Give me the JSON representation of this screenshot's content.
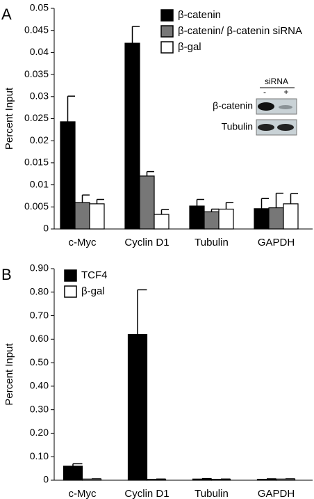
{
  "chart_data": [
    {
      "type": "bar",
      "panel": "A",
      "ylabel": "Percent Input",
      "categories": [
        "c-Myc",
        "Cyclin D1",
        "Tubulin",
        "GAPDH"
      ],
      "series": [
        {
          "name": "β-catenin",
          "color": "#000000",
          "values": [
            0.0243,
            0.0421,
            0.0052,
            0.0046
          ],
          "errors": [
            0.0058,
            0.0038,
            0.0015,
            0.0023
          ]
        },
        {
          "name": "β-catenin/ β-catenin siRNA",
          "color": "#777777",
          "values": [
            0.006,
            0.012,
            0.0039,
            0.0048
          ],
          "errors": [
            0.0017,
            0.001,
            0.0006,
            0.0033
          ]
        },
        {
          "name": "β-gal",
          "color": "#ffffff",
          "values": [
            0.0057,
            0.0033,
            0.0045,
            0.0057
          ],
          "errors": [
            0.001,
            0.0011,
            0.0015,
            0.0023
          ]
        }
      ],
      "ylim": [
        0,
        0.05
      ],
      "yticks": [
        0,
        0.005,
        0.01,
        0.015,
        0.02,
        0.025,
        0.03,
        0.035,
        0.04,
        0.045,
        0.05
      ],
      "legend": "upper center",
      "inset": {
        "title": "siRNA",
        "lanes": [
          "-",
          "+"
        ],
        "rows": [
          "β-catenin",
          "Tubulin"
        ]
      }
    },
    {
      "type": "bar",
      "panel": "B",
      "ylabel": "Percent Input",
      "categories": [
        "c-Myc",
        "Cyclin D1",
        "Tubulin",
        "GAPDH"
      ],
      "series": [
        {
          "name": "TCF4",
          "color": "#000000",
          "values": [
            0.06,
            0.62,
            0.005,
            0.004
          ],
          "errors": [
            0.01,
            0.19,
            0.002,
            0.002
          ]
        },
        {
          "name": "β-gal",
          "color": "#ffffff",
          "values": [
            0.005,
            0.004,
            0.004,
            0.005
          ],
          "errors": [
            0.001,
            0.001,
            0.001,
            0.001
          ]
        }
      ],
      "ylim": [
        0,
        0.9
      ],
      "yticks": [
        0,
        {
          "value": 0.1,
          "label": "0.10"
        },
        {
          "value": 0.2,
          "label": "0.20"
        },
        {
          "value": 0.3,
          "label": "0.30"
        },
        {
          "value": 0.4,
          "label": "0.40"
        },
        {
          "value": 0.5,
          "label": "0.50"
        },
        {
          "value": 0.6,
          "label": "0.60"
        },
        {
          "value": 0.7,
          "label": "0.70"
        },
        {
          "value": 0.8,
          "label": "0.80"
        },
        {
          "value": 0.9,
          "label": "0.90"
        }
      ],
      "legend": "upper left"
    }
  ]
}
